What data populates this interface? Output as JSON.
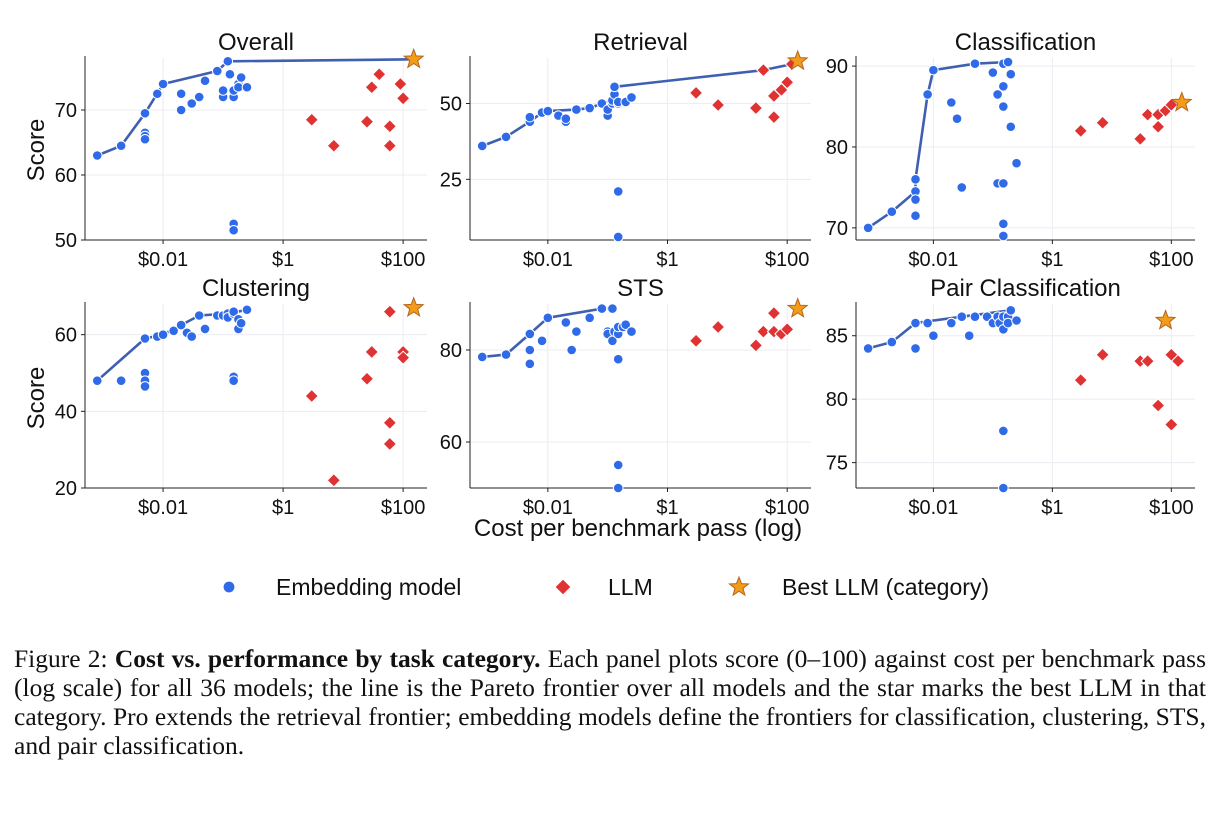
{
  "figure": {
    "x_axis_label": "Cost per benchmark pass (log)",
    "y_axis_label": "Score",
    "x_tick_labels": [
      "$0.01",
      "$1",
      "$100"
    ],
    "legend": {
      "embedding": "Embedding model",
      "llm": "LLM",
      "best": "Best LLM (category)"
    },
    "colors": {
      "embedding": "#2f6be8",
      "llm": "#e03232",
      "best": "#f39c1a",
      "frontier": "#3f5fb0"
    }
  },
  "caption": {
    "label": "Figure 2:",
    "title": "Cost vs. performance by task category.",
    "text": "Each panel plots score (0–100) against cost per benchmark pass (log scale) for all 36 models; the line is the Pareto frontier over all models and the star marks the best LLM in that category. Pro extends the retrieval frontier; embedding models define the frontiers for classification, clustering, STS, and pair classification."
  },
  "chart_data": [
    {
      "type": "scatter",
      "title": "Overall",
      "xscale": "log",
      "ylim": [
        50,
        78
      ],
      "yticks": [
        50,
        60,
        70
      ],
      "embedding": [
        [
          0.0008,
          63
        ],
        [
          0.002,
          64.5
        ],
        [
          0.005,
          69.5
        ],
        [
          0.005,
          66.5
        ],
        [
          0.005,
          66
        ],
        [
          0.005,
          65.5
        ],
        [
          0.008,
          72.5
        ],
        [
          0.01,
          74
        ],
        [
          0.02,
          70
        ],
        [
          0.02,
          72.5
        ],
        [
          0.03,
          71
        ],
        [
          0.04,
          72
        ],
        [
          0.05,
          74.5
        ],
        [
          0.08,
          76
        ],
        [
          0.1,
          72
        ],
        [
          0.1,
          73
        ],
        [
          0.12,
          77.5
        ],
        [
          0.13,
          75.5
        ],
        [
          0.15,
          72
        ],
        [
          0.15,
          73
        ],
        [
          0.18,
          74
        ],
        [
          0.18,
          73.5
        ],
        [
          0.2,
          75
        ],
        [
          0.25,
          73.5
        ],
        [
          0.15,
          52.5
        ],
        [
          0.15,
          51.5
        ]
      ],
      "llm": [
        [
          3,
          68.5
        ],
        [
          7,
          64.5
        ],
        [
          25,
          68.2
        ],
        [
          30,
          73.5
        ],
        [
          40,
          75.5
        ],
        [
          60,
          67.5
        ],
        [
          60,
          64.5
        ],
        [
          90,
          74
        ],
        [
          100,
          71.8
        ]
      ],
      "best": [
        [
          150,
          77.8
        ]
      ],
      "frontier": [
        [
          0.0008,
          63
        ],
        [
          0.002,
          64.5
        ],
        [
          0.005,
          69.5
        ],
        [
          0.01,
          74
        ],
        [
          0.08,
          76
        ],
        [
          0.12,
          77.5
        ],
        [
          150,
          77.8
        ]
      ]
    },
    {
      "type": "scatter",
      "title": "Retrieval",
      "xscale": "log",
      "ylim": [
        5,
        65
      ],
      "yticks": [
        25,
        50
      ],
      "embedding": [
        [
          0.0008,
          36
        ],
        [
          0.002,
          39
        ],
        [
          0.005,
          44
        ],
        [
          0.005,
          45.5
        ],
        [
          0.008,
          47
        ],
        [
          0.01,
          47.5
        ],
        [
          0.015,
          46
        ],
        [
          0.02,
          44
        ],
        [
          0.02,
          45
        ],
        [
          0.03,
          48
        ],
        [
          0.05,
          48.5
        ],
        [
          0.08,
          50
        ],
        [
          0.1,
          46
        ],
        [
          0.1,
          48
        ],
        [
          0.12,
          50
        ],
        [
          0.12,
          51
        ],
        [
          0.13,
          53
        ],
        [
          0.13,
          55.5
        ],
        [
          0.15,
          50
        ],
        [
          0.15,
          50.5
        ],
        [
          0.2,
          50.5
        ],
        [
          0.25,
          52
        ],
        [
          0.15,
          21
        ],
        [
          0.15,
          6
        ]
      ],
      "llm": [
        [
          3,
          53.5
        ],
        [
          7,
          49.5
        ],
        [
          30,
          48.5
        ],
        [
          40,
          61
        ],
        [
          60,
          52.5
        ],
        [
          60,
          45.5
        ],
        [
          80,
          54.5
        ],
        [
          100,
          57
        ],
        [
          120,
          63
        ]
      ],
      "best": [
        [
          150,
          64
        ]
      ],
      "frontier": [
        [
          0.0008,
          36
        ],
        [
          0.002,
          39
        ],
        [
          0.005,
          44
        ],
        [
          0.008,
          47
        ],
        [
          0.01,
          47.5
        ],
        [
          0.03,
          48
        ],
        [
          0.05,
          48.5
        ],
        [
          0.08,
          50
        ],
        [
          0.12,
          51
        ],
        [
          0.13,
          53
        ],
        [
          0.13,
          55.5
        ],
        [
          40,
          61
        ],
        [
          120,
          63
        ],
        [
          150,
          64
        ]
      ]
    },
    {
      "type": "scatter",
      "title": "Classification",
      "xscale": "log",
      "ylim": [
        68.5,
        91
      ],
      "yticks": [
        70,
        80,
        90
      ],
      "embedding": [
        [
          0.0008,
          70
        ],
        [
          0.002,
          72
        ],
        [
          0.005,
          74.5
        ],
        [
          0.005,
          76
        ],
        [
          0.005,
          73.5
        ],
        [
          0.005,
          71.5
        ],
        [
          0.008,
          86.5
        ],
        [
          0.01,
          89.5
        ],
        [
          0.02,
          85.5
        ],
        [
          0.025,
          83.5
        ],
        [
          0.03,
          75
        ],
        [
          0.05,
          90.3
        ],
        [
          0.1,
          89.2
        ],
        [
          0.12,
          86.5
        ],
        [
          0.12,
          75.5
        ],
        [
          0.15,
          87.5
        ],
        [
          0.15,
          85
        ],
        [
          0.15,
          90.3
        ],
        [
          0.15,
          75.5
        ],
        [
          0.18,
          90.5
        ],
        [
          0.2,
          89
        ],
        [
          0.2,
          82.5
        ],
        [
          0.25,
          78
        ],
        [
          0.15,
          70.5
        ],
        [
          0.15,
          69
        ]
      ],
      "llm": [
        [
          3,
          82
        ],
        [
          7,
          83
        ],
        [
          30,
          81
        ],
        [
          40,
          84
        ],
        [
          60,
          84
        ],
        [
          60,
          82.5
        ],
        [
          80,
          84.5
        ],
        [
          100,
          85.2
        ]
      ],
      "best": [
        [
          150,
          85.5
        ]
      ],
      "frontier": [
        [
          0.0008,
          70
        ],
        [
          0.002,
          72
        ],
        [
          0.005,
          74.5
        ],
        [
          0.005,
          76
        ],
        [
          0.008,
          86.5
        ],
        [
          0.01,
          89.5
        ],
        [
          0.05,
          90.3
        ],
        [
          0.18,
          90.5
        ]
      ]
    },
    {
      "type": "scatter",
      "title": "Clustering",
      "xscale": "log",
      "ylim": [
        20,
        68
      ],
      "yticks": [
        20,
        40,
        60
      ],
      "embedding": [
        [
          0.0008,
          48
        ],
        [
          0.002,
          48
        ],
        [
          0.005,
          59
        ],
        [
          0.005,
          50
        ],
        [
          0.005,
          48
        ],
        [
          0.005,
          46.5
        ],
        [
          0.008,
          59.5
        ],
        [
          0.01,
          60
        ],
        [
          0.015,
          61
        ],
        [
          0.02,
          62.5
        ],
        [
          0.025,
          60.5
        ],
        [
          0.03,
          59.5
        ],
        [
          0.04,
          65
        ],
        [
          0.05,
          61.5
        ],
        [
          0.08,
          65
        ],
        [
          0.1,
          65
        ],
        [
          0.12,
          65.5
        ],
        [
          0.12,
          64.5
        ],
        [
          0.15,
          65.5
        ],
        [
          0.15,
          66
        ],
        [
          0.18,
          64
        ],
        [
          0.18,
          61.5
        ],
        [
          0.2,
          63
        ],
        [
          0.25,
          66.5
        ],
        [
          0.15,
          49
        ],
        [
          0.15,
          48
        ]
      ],
      "llm": [
        [
          3,
          44
        ],
        [
          7,
          22
        ],
        [
          25,
          48.5
        ],
        [
          30,
          55.5
        ],
        [
          60,
          66
        ],
        [
          60,
          37
        ],
        [
          60,
          31.5
        ],
        [
          100,
          55.5
        ],
        [
          100,
          54
        ]
      ],
      "best": [
        [
          150,
          67
        ]
      ],
      "frontier": [
        [
          0.0008,
          48
        ],
        [
          0.005,
          59
        ],
        [
          0.01,
          60
        ],
        [
          0.02,
          62.5
        ],
        [
          0.04,
          65
        ],
        [
          0.12,
          65.5
        ],
        [
          0.25,
          66.5
        ]
      ]
    },
    {
      "type": "scatter",
      "title": "STS",
      "xscale": "log",
      "ylim": [
        50,
        90
      ],
      "yticks": [
        60,
        80
      ],
      "embedding": [
        [
          0.0008,
          78.5
        ],
        [
          0.002,
          79
        ],
        [
          0.005,
          83.5
        ],
        [
          0.005,
          80
        ],
        [
          0.005,
          77
        ],
        [
          0.008,
          82
        ],
        [
          0.01,
          87
        ],
        [
          0.02,
          86
        ],
        [
          0.025,
          80
        ],
        [
          0.03,
          84
        ],
        [
          0.05,
          87
        ],
        [
          0.08,
          89
        ],
        [
          0.1,
          84
        ],
        [
          0.1,
          83.5
        ],
        [
          0.12,
          82
        ],
        [
          0.12,
          89
        ],
        [
          0.13,
          84
        ],
        [
          0.15,
          83.5
        ],
        [
          0.15,
          85
        ],
        [
          0.18,
          85
        ],
        [
          0.2,
          85.5
        ],
        [
          0.25,
          84
        ],
        [
          0.15,
          78
        ],
        [
          0.15,
          55
        ],
        [
          0.15,
          50
        ]
      ],
      "llm": [
        [
          3,
          82
        ],
        [
          7,
          85
        ],
        [
          30,
          81
        ],
        [
          40,
          84
        ],
        [
          60,
          84
        ],
        [
          60,
          88
        ],
        [
          80,
          83.5
        ],
        [
          100,
          84.5
        ]
      ],
      "best": [
        [
          150,
          89
        ]
      ],
      "frontier": [
        [
          0.0008,
          78.5
        ],
        [
          0.002,
          79
        ],
        [
          0.005,
          83.5
        ],
        [
          0.01,
          87
        ],
        [
          0.08,
          89
        ],
        [
          0.12,
          89
        ]
      ]
    },
    {
      "type": "scatter",
      "title": "Pair Classification",
      "xscale": "log",
      "ylim": [
        73,
        87.5
      ],
      "yticks": [
        75,
        80,
        85
      ],
      "embedding": [
        [
          0.0008,
          84
        ],
        [
          0.002,
          84.5
        ],
        [
          0.005,
          86
        ],
        [
          0.005,
          84
        ],
        [
          0.008,
          86
        ],
        [
          0.01,
          85
        ],
        [
          0.02,
          86
        ],
        [
          0.02,
          86
        ],
        [
          0.03,
          86.5
        ],
        [
          0.04,
          85
        ],
        [
          0.05,
          86.5
        ],
        [
          0.08,
          86.5
        ],
        [
          0.1,
          86
        ],
        [
          0.12,
          86.5
        ],
        [
          0.13,
          86
        ],
        [
          0.15,
          86.5
        ],
        [
          0.15,
          85.5
        ],
        [
          0.18,
          86.5
        ],
        [
          0.18,
          86
        ],
        [
          0.2,
          87
        ],
        [
          0.25,
          86.2
        ],
        [
          0.15,
          77.5
        ],
        [
          0.15,
          73
        ]
      ],
      "llm": [
        [
          3,
          81.5
        ],
        [
          7,
          83.5
        ],
        [
          30,
          83
        ],
        [
          40,
          83
        ],
        [
          60,
          79.5
        ],
        [
          60,
          79.5
        ],
        [
          100,
          83.5
        ],
        [
          100,
          78
        ],
        [
          130,
          83
        ]
      ],
      "best": [
        [
          80,
          86.2
        ]
      ],
      "frontier": [
        [
          0.0008,
          84
        ],
        [
          0.002,
          84.5
        ],
        [
          0.005,
          86
        ],
        [
          0.03,
          86.5
        ],
        [
          0.2,
          87
        ]
      ]
    }
  ]
}
